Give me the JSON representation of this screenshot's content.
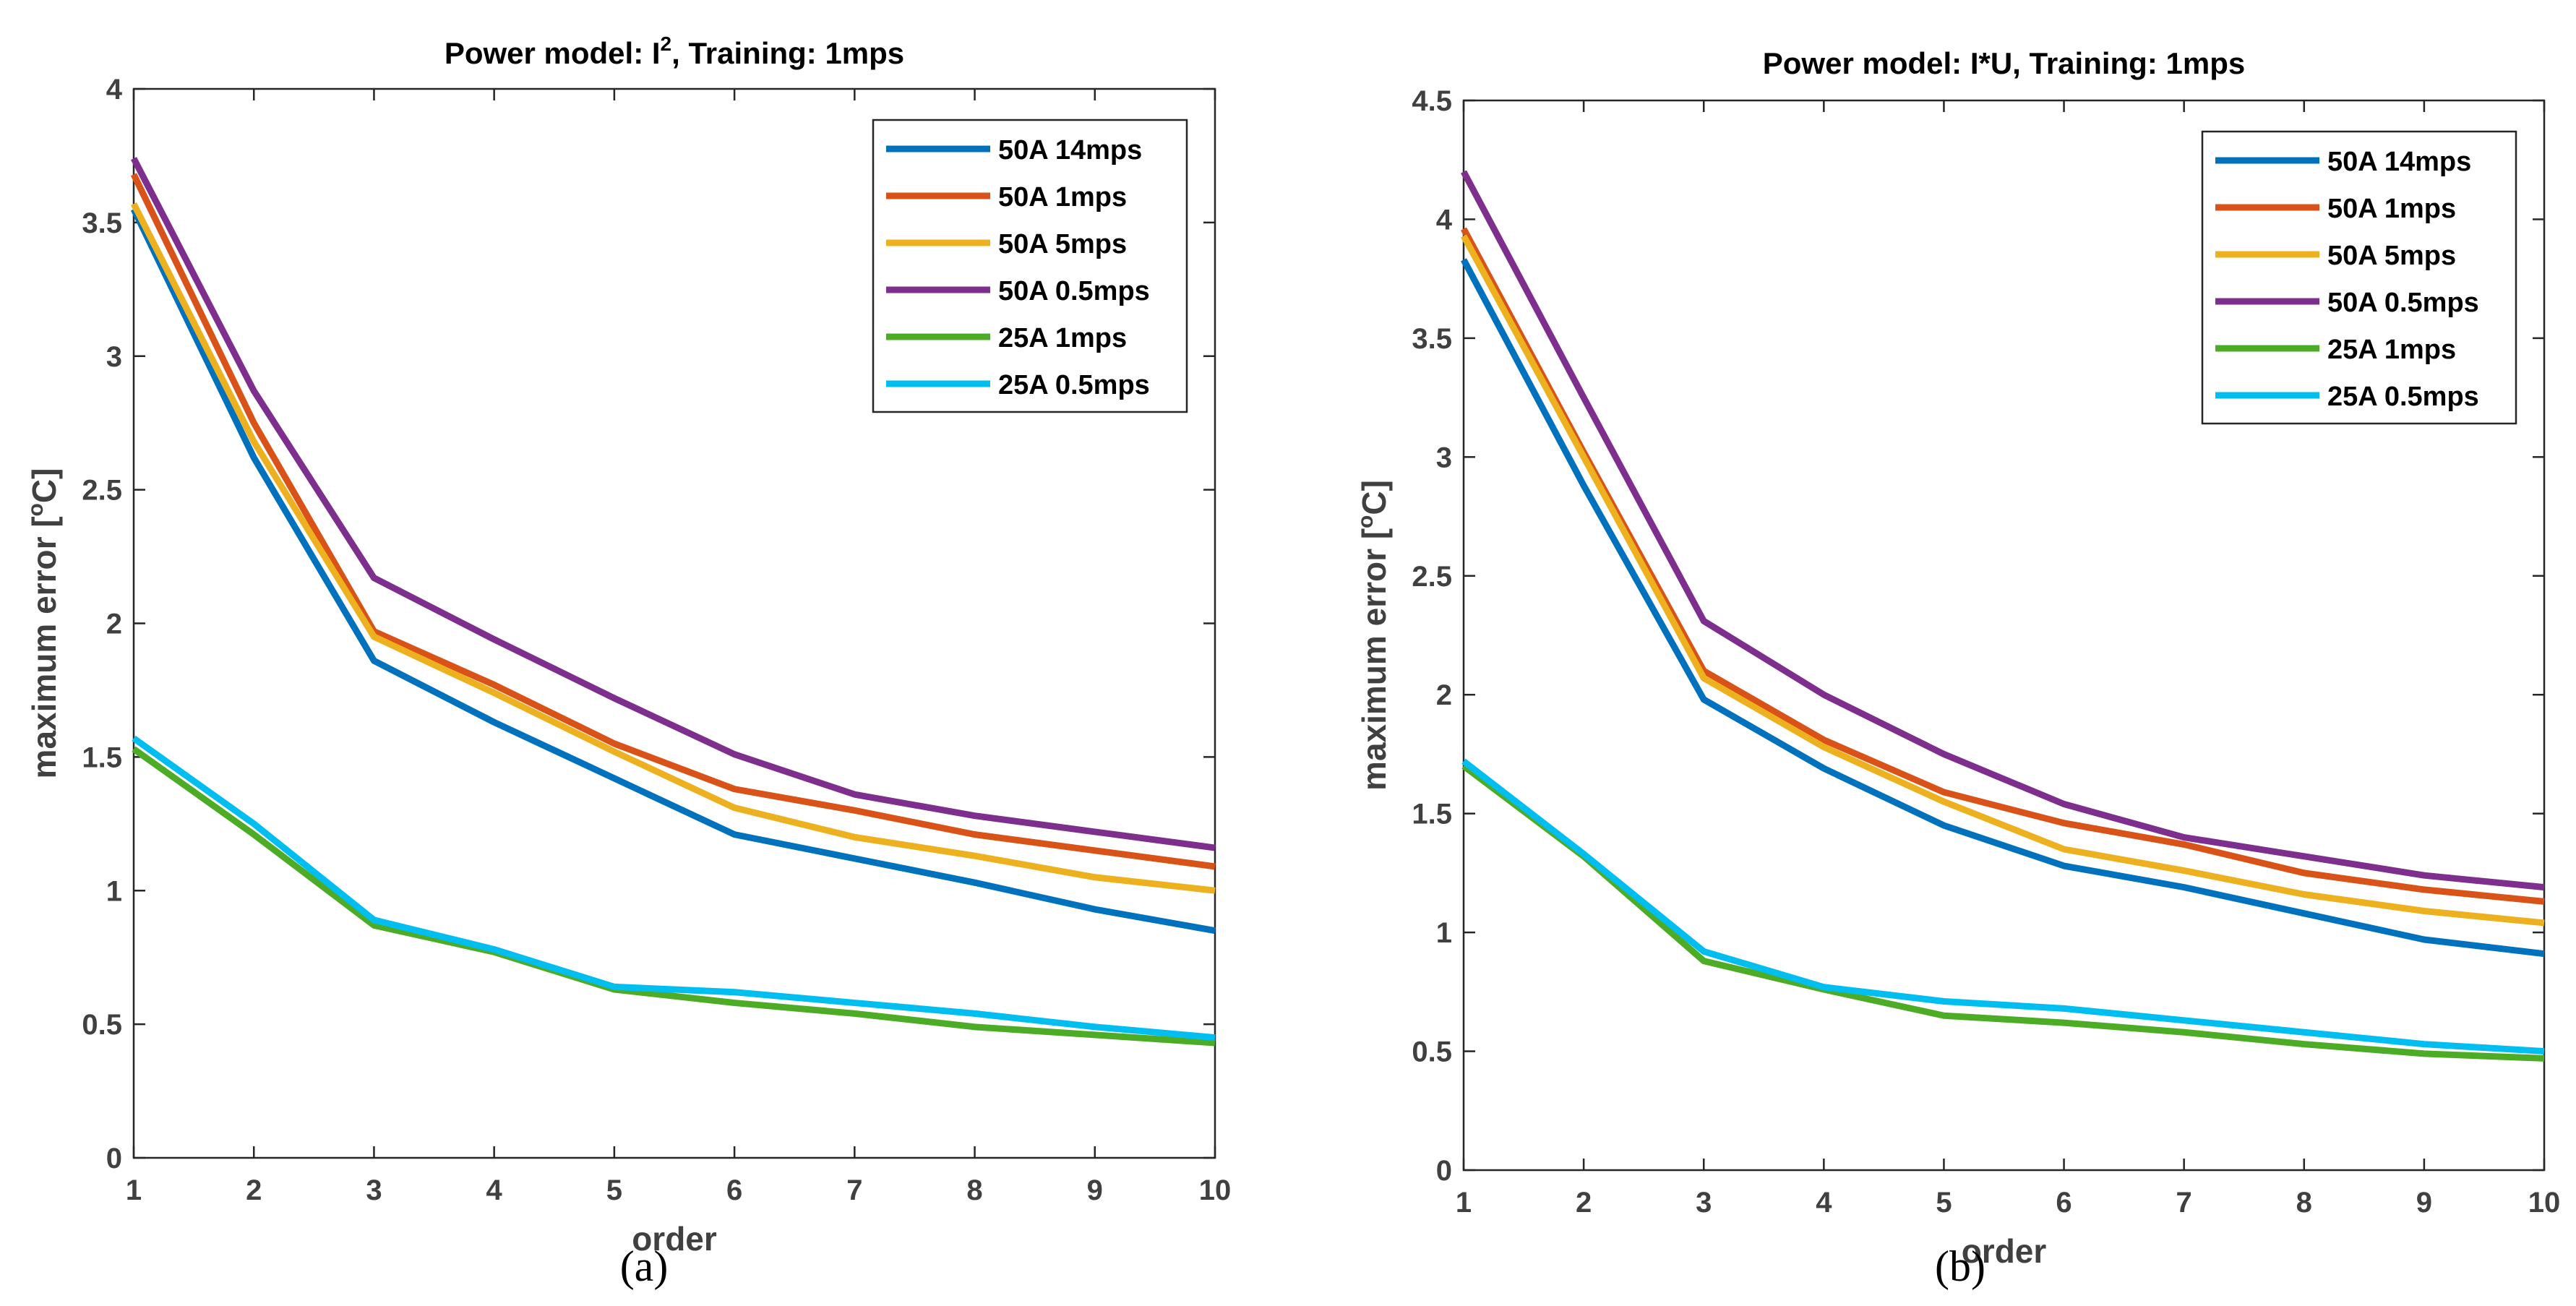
{
  "chart_data": [
    {
      "type": "line",
      "title": "Power model: I2, Training: 1mps",
      "title_main": "Power model: I",
      "title_sup": "2",
      "title_rest": ", Training: 1mps",
      "xlabel": "order",
      "ylabel": "maximum error [oC]",
      "ylabel_main": "maximum error [",
      "ylabel_sup": "o",
      "ylabel_rest": "C]",
      "caption": "(a)",
      "xlim": [
        1,
        10
      ],
      "ylim": [
        0,
        4
      ],
      "xticks": [
        "1",
        "2",
        "3",
        "4",
        "5",
        "6",
        "7",
        "8",
        "9",
        "10"
      ],
      "yticks": [
        "0",
        "0.5",
        "1",
        "1.5",
        "2",
        "2.5",
        "3",
        "3.5",
        "4"
      ],
      "legend_position": "top-right",
      "x": [
        1,
        2,
        3,
        4,
        5,
        6,
        7,
        8,
        9,
        10
      ],
      "series": [
        {
          "name": "50A 14mps",
          "color": "#0072BD",
          "values": [
            3.55,
            2.62,
            1.86,
            1.63,
            1.42,
            1.21,
            1.12,
            1.03,
            0.93,
            0.85
          ]
        },
        {
          "name": "50A 1mps",
          "color": "#D95319",
          "values": [
            3.68,
            2.75,
            1.97,
            1.77,
            1.55,
            1.38,
            1.3,
            1.21,
            1.15,
            1.09
          ]
        },
        {
          "name": "50A 5mps",
          "color": "#EDB120",
          "values": [
            3.57,
            2.68,
            1.95,
            1.74,
            1.52,
            1.31,
            1.2,
            1.13,
            1.05,
            1.0
          ]
        },
        {
          "name": "50A 0.5mps",
          "color": "#7E2F8E",
          "values": [
            3.74,
            2.87,
            2.17,
            1.94,
            1.72,
            1.51,
            1.36,
            1.28,
            1.22,
            1.16
          ]
        },
        {
          "name": "25A 1mps",
          "color": "#4DAC26",
          "values": [
            1.53,
            1.21,
            0.87,
            0.77,
            0.63,
            0.58,
            0.54,
            0.49,
            0.46,
            0.43
          ]
        },
        {
          "name": "25A 0.5mps",
          "color": "#00BFF0",
          "values": [
            1.57,
            1.25,
            0.89,
            0.78,
            0.64,
            0.62,
            0.58,
            0.54,
            0.49,
            0.45
          ]
        }
      ]
    },
    {
      "type": "line",
      "title": "Power model: I*U, Training: 1mps",
      "title_main": "Power model: I*U, Training: 1mps",
      "title_sup": "",
      "title_rest": "",
      "xlabel": "order",
      "ylabel": "maximum error [oC]",
      "ylabel_main": "maximum error [",
      "ylabel_sup": "o",
      "ylabel_rest": "C]",
      "caption": "(b)",
      "xlim": [
        1,
        10
      ],
      "ylim": [
        0,
        4.5
      ],
      "xticks": [
        "1",
        "2",
        "3",
        "4",
        "5",
        "6",
        "7",
        "8",
        "9",
        "10"
      ],
      "yticks": [
        "0",
        "0.5",
        "1",
        "1.5",
        "2",
        "2.5",
        "3",
        "3.5",
        "4",
        "4.5"
      ],
      "legend_position": "top-right",
      "x": [
        1,
        2,
        3,
        4,
        5,
        6,
        7,
        8,
        9,
        10
      ],
      "series": [
        {
          "name": "50A 14mps",
          "color": "#0072BD",
          "values": [
            3.83,
            2.88,
            1.98,
            1.69,
            1.45,
            1.28,
            1.19,
            1.08,
            0.97,
            0.91
          ]
        },
        {
          "name": "50A 1mps",
          "color": "#D95319",
          "values": [
            3.96,
            3.02,
            2.1,
            1.81,
            1.59,
            1.46,
            1.37,
            1.25,
            1.18,
            1.13
          ]
        },
        {
          "name": "50A 5mps",
          "color": "#EDB120",
          "values": [
            3.93,
            3.0,
            2.07,
            1.78,
            1.55,
            1.35,
            1.26,
            1.16,
            1.09,
            1.04
          ]
        },
        {
          "name": "50A 0.5mps",
          "color": "#7E2F8E",
          "values": [
            4.2,
            3.25,
            2.31,
            2.0,
            1.75,
            1.54,
            1.4,
            1.32,
            1.24,
            1.19
          ]
        },
        {
          "name": "25A 1mps",
          "color": "#4DAC26",
          "values": [
            1.7,
            1.32,
            0.88,
            0.76,
            0.65,
            0.62,
            0.58,
            0.53,
            0.49,
            0.47
          ]
        },
        {
          "name": "25A 0.5mps",
          "color": "#00BFF0",
          "values": [
            1.72,
            1.33,
            0.92,
            0.77,
            0.71,
            0.68,
            0.63,
            0.58,
            0.53,
            0.5
          ]
        }
      ]
    }
  ]
}
